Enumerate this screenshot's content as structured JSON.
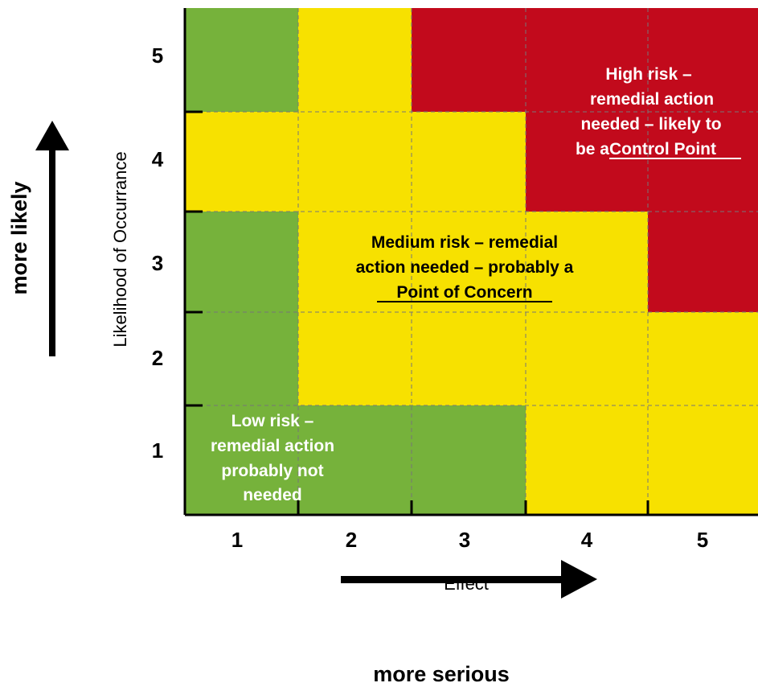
{
  "chart_data": {
    "type": "heatmap",
    "xlabel": "Effect",
    "ylabel": "Likelihood of Occurrance",
    "x_ticks": [
      "1",
      "2",
      "3",
      "4",
      "5"
    ],
    "y_ticks": [
      "1",
      "2",
      "3",
      "4",
      "5"
    ],
    "colors": {
      "low": "#76b23b",
      "medium": "#f7e100",
      "high": "#c20a1c"
    },
    "cells": [
      [
        "low",
        "medium",
        "high",
        "high",
        "high"
      ],
      [
        "medium",
        "medium",
        "medium",
        "high",
        "high"
      ],
      [
        "low",
        "medium",
        "medium",
        "medium",
        "high"
      ],
      [
        "low",
        "medium",
        "medium",
        "medium",
        "medium"
      ],
      [
        "low",
        "low",
        "low",
        "medium",
        "medium"
      ]
    ],
    "annotations": [
      {
        "zone": "high",
        "lines": [
          "High risk –",
          "remedial action",
          "needed – likely to",
          "be a "
        ],
        "emphasis": "Control Point",
        "color": "#ffffff"
      },
      {
        "zone": "medium",
        "lines": [
          "Medium risk – remedial",
          "action needed – probably a"
        ],
        "emphasis": "Point of Concern",
        "color": "#000000"
      },
      {
        "zone": "low",
        "lines": [
          "Low risk –",
          "remedial action",
          "probably not",
          "needed"
        ],
        "emphasis": "",
        "color": "#ffffff"
      }
    ],
    "vertical_arrow_label": "more likely",
    "horizontal_arrow_label": "more serious",
    "grid": true
  }
}
